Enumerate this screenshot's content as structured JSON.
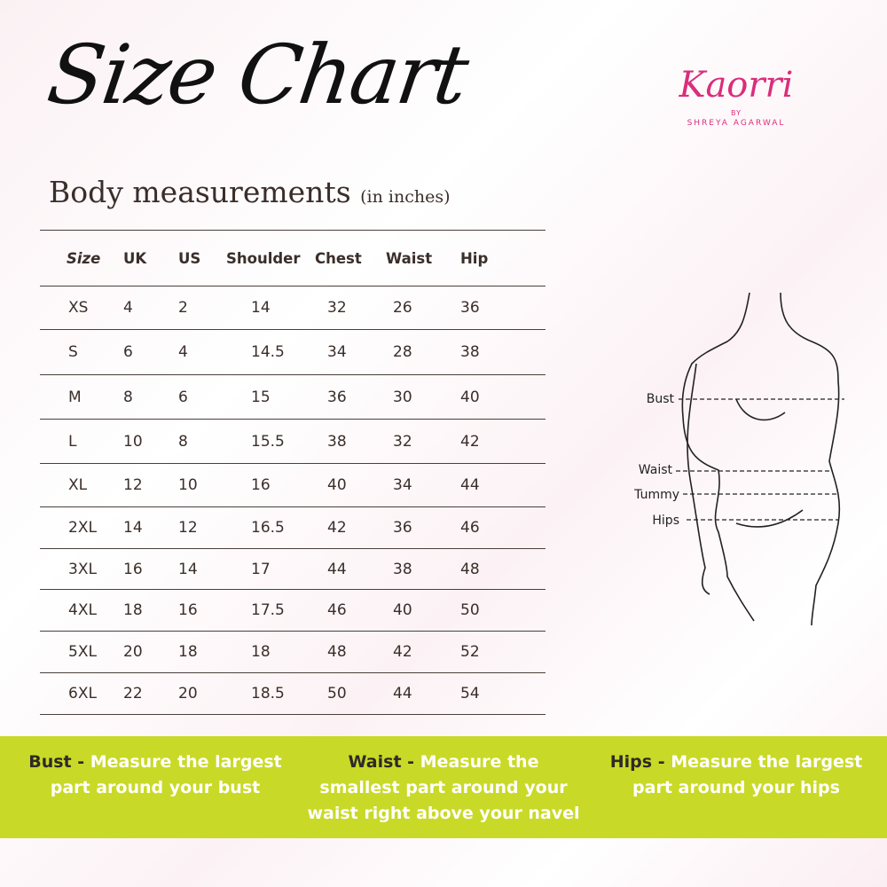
{
  "title": "Size Chart",
  "subtitle": "Body measurements",
  "unit_note": "(in inches)",
  "logo": {
    "brand": "Kaorri",
    "by": "BY",
    "owner": "SHREYA AGARWAL",
    "color": "#d92e7c"
  },
  "table": {
    "headers": [
      "Size",
      "UK",
      "US",
      "Shoulder",
      "Chest",
      "Waist",
      "Hip"
    ],
    "rows": [
      [
        "XS",
        "4",
        "2",
        "14",
        "32",
        "26",
        "36"
      ],
      [
        "S",
        "6",
        "4",
        "14.5",
        "34",
        "28",
        "38"
      ],
      [
        "M",
        "8",
        "6",
        "15",
        "36",
        "30",
        "40"
      ],
      [
        "L",
        "10",
        "8",
        "15.5",
        "38",
        "32",
        "42"
      ],
      [
        "XL",
        "12",
        "10",
        "16",
        "40",
        "34",
        "44"
      ],
      [
        "2XL",
        "14",
        "12",
        "16.5",
        "42",
        "36",
        "46"
      ],
      [
        "3XL",
        "16",
        "14",
        "17",
        "44",
        "38",
        "48"
      ],
      [
        "4XL",
        "18",
        "16",
        "17.5",
        "46",
        "40",
        "50"
      ],
      [
        "5XL",
        "20",
        "18",
        "18",
        "48",
        "42",
        "52"
      ],
      [
        "6XL",
        "22",
        "20",
        "18.5",
        "50",
        "44",
        "54"
      ]
    ]
  },
  "figure": {
    "labels": [
      "Bust",
      "Waist",
      "Tummy",
      "Hips"
    ]
  },
  "tips": [
    {
      "term": "Bust -",
      "text": " Measure the largest part around your bust"
    },
    {
      "term": "Waist -",
      "text": " Measure the smallest part around your waist right above your navel"
    },
    {
      "term": "Hips -",
      "text": " Measure the largest part around your hips"
    }
  ],
  "band_color": "#c9d927"
}
